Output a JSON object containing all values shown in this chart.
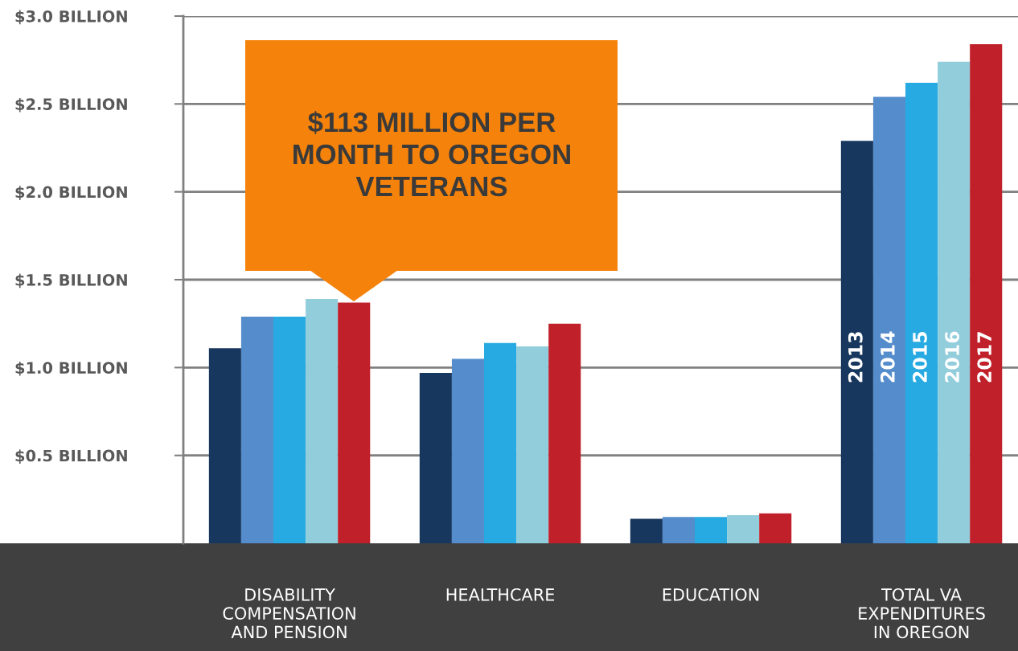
{
  "chart_data": {
    "type": "bar",
    "categories": [
      "DISABILITY\nCOMPENSATION\nAND PENSION",
      "HEALTHCARE",
      "EDUCATION",
      "TOTAL VA\nEXPENDITURES\nIN OREGON"
    ],
    "series": [
      {
        "name": "2013",
        "color": "#17375e",
        "values": [
          1.11,
          0.97,
          0.14,
          2.29
        ]
      },
      {
        "name": "2014",
        "color": "#558ccb",
        "values": [
          1.29,
          1.05,
          0.15,
          2.54
        ]
      },
      {
        "name": "2015",
        "color": "#27aae1",
        "values": [
          1.29,
          1.14,
          0.15,
          2.62
        ]
      },
      {
        "name": "2016",
        "color": "#92cddc",
        "values": [
          1.39,
          1.12,
          0.16,
          2.74
        ]
      },
      {
        "name": "2017",
        "color": "#c0202a",
        "values": [
          1.37,
          1.25,
          0.17,
          2.84
        ]
      }
    ],
    "ylim": [
      0,
      3.0
    ],
    "yticks": [
      {
        "value": 0.5,
        "label": "$0.5 BILLION"
      },
      {
        "value": 1.0,
        "label": "$1.0 BILLION"
      },
      {
        "value": 1.5,
        "label": "$1.5 BILLION"
      },
      {
        "value": 2.0,
        "label": "$2.0 BILLION"
      },
      {
        "value": 2.5,
        "label": "$2.5 BILLION"
      },
      {
        "value": 3.0,
        "label": "$3.0 BILLION"
      }
    ],
    "grid": "y",
    "annotations": [
      "$113 MILLION PER\nMONTH TO OREGON\nVETERANS"
    ]
  }
}
